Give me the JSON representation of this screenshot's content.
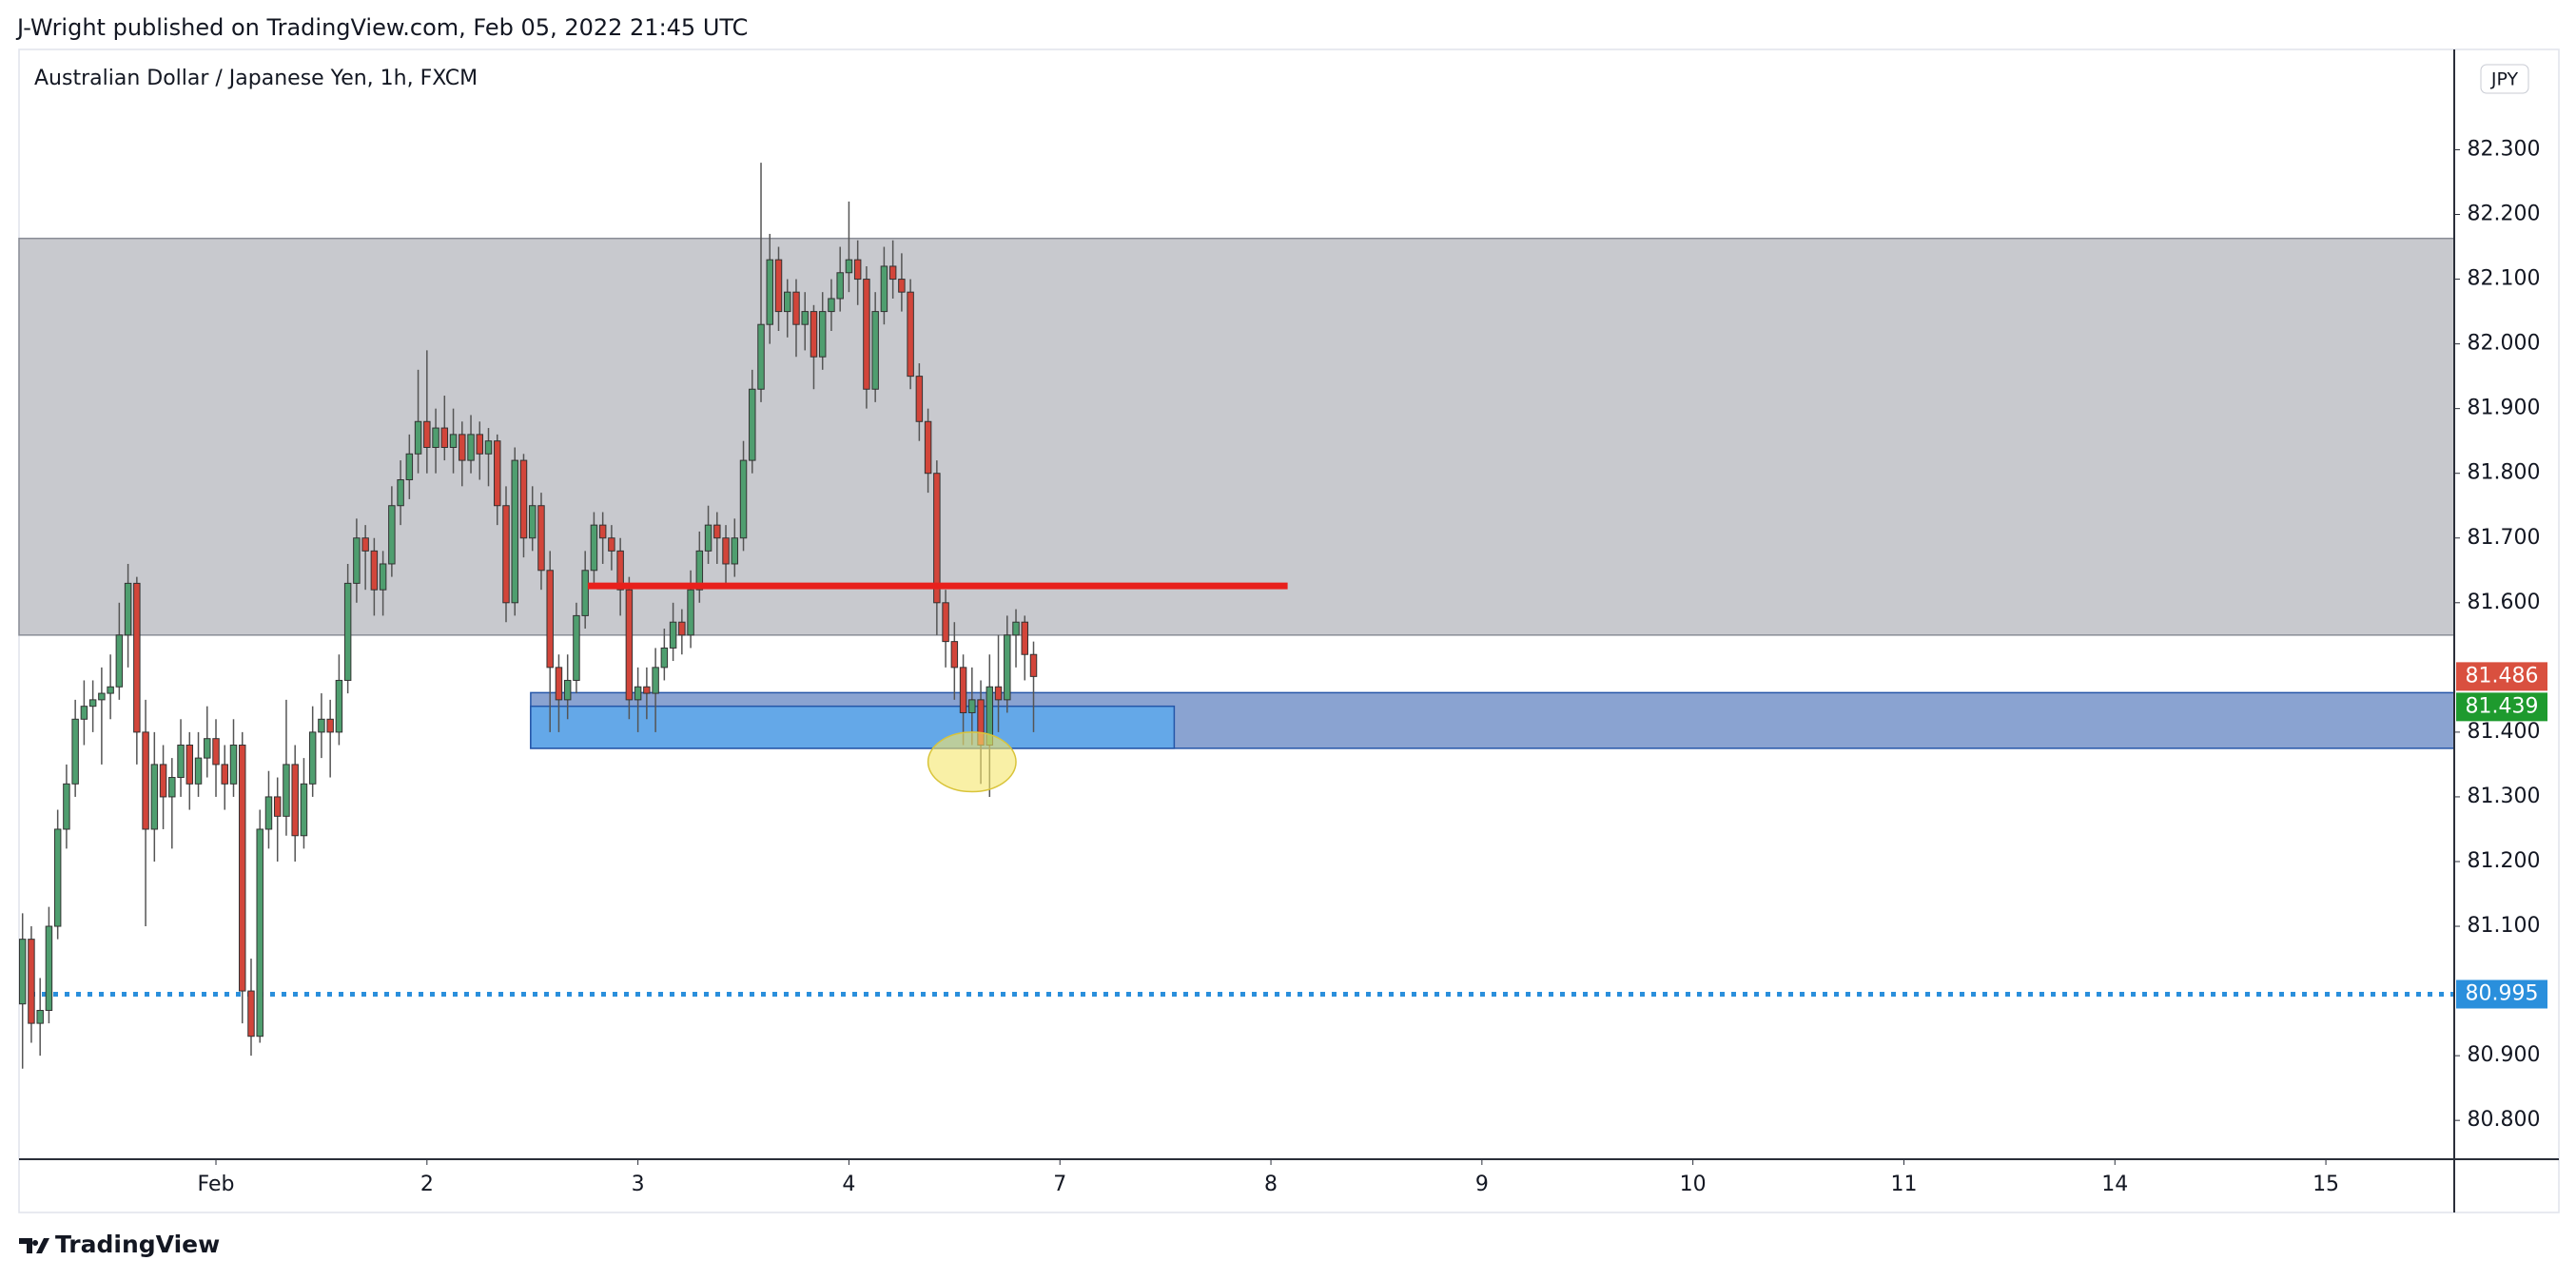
{
  "header": "J-Wright published on TradingView.com, Feb 05, 2022 21:45 UTC",
  "footer": "TradingView",
  "chart_data": {
    "type": "candlestick",
    "title": "Australian Dollar / Japanese Yen, 1h, FXCM",
    "currency": "JPY",
    "up_color": "#4f9e6f",
    "down_color": "#d2453a",
    "grid": false,
    "xlim": [
      -0.4,
      276.6
    ],
    "ylim": [
      80.74,
      82.455
    ],
    "xticks": [
      {
        "value": 22,
        "label": "Feb"
      },
      {
        "value": 46,
        "label": "2"
      },
      {
        "value": 70,
        "label": "3"
      },
      {
        "value": 94,
        "label": "4"
      },
      {
        "value": 118,
        "label": "7"
      },
      {
        "value": 142,
        "label": "8"
      },
      {
        "value": 166,
        "label": "9"
      },
      {
        "value": 190,
        "label": "10"
      },
      {
        "value": 214,
        "label": "11"
      },
      {
        "value": 238,
        "label": "14"
      },
      {
        "value": 262,
        "label": "15"
      }
    ],
    "yticks": [
      {
        "value": 80.8,
        "label": "80.800"
      },
      {
        "value": 80.9,
        "label": "80.900"
      },
      {
        "value": 81.1,
        "label": "81.100"
      },
      {
        "value": 81.2,
        "label": "81.200"
      },
      {
        "value": 81.3,
        "label": "81.300"
      },
      {
        "value": 81.4,
        "label": "81.400"
      },
      {
        "value": 81.6,
        "label": "81.600"
      },
      {
        "value": 81.7,
        "label": "81.700"
      },
      {
        "value": 81.8,
        "label": "81.800"
      },
      {
        "value": 81.9,
        "label": "81.900"
      },
      {
        "value": 82.0,
        "label": "82.000"
      },
      {
        "value": 82.1,
        "label": "82.100"
      },
      {
        "value": 82.2,
        "label": "82.200"
      },
      {
        "value": 82.3,
        "label": "82.300"
      }
    ],
    "x": [
      0,
      1,
      2,
      3,
      4,
      5,
      6,
      7,
      8,
      9,
      10,
      11,
      12,
      13,
      14,
      15,
      16,
      17,
      18,
      19,
      20,
      21,
      22,
      23,
      24,
      25,
      26,
      27,
      28,
      29,
      30,
      31,
      32,
      33,
      34,
      35,
      36,
      37,
      38,
      39,
      40,
      41,
      42,
      43,
      44,
      45,
      46,
      47,
      48,
      49,
      50,
      51,
      52,
      53,
      54,
      55,
      56,
      57,
      58,
      59,
      60,
      61,
      62,
      63,
      64,
      65,
      66,
      67,
      68,
      69,
      70,
      71,
      72,
      73,
      74,
      75,
      76,
      77,
      78,
      79,
      80,
      81,
      82,
      83,
      84,
      85,
      86,
      87,
      88,
      89,
      90,
      91,
      92,
      93,
      94,
      95,
      96,
      97,
      98,
      99,
      100,
      101,
      102,
      103,
      104,
      105,
      106,
      107,
      108,
      109,
      110,
      111,
      112,
      113,
      114,
      115
    ],
    "candles": [
      [
        80.98,
        81.12,
        80.88,
        81.08
      ],
      [
        81.08,
        81.1,
        80.92,
        80.95
      ],
      [
        80.95,
        81.02,
        80.9,
        80.97
      ],
      [
        80.97,
        81.13,
        80.95,
        81.1
      ],
      [
        81.1,
        81.28,
        81.08,
        81.25
      ],
      [
        81.25,
        81.35,
        81.22,
        81.32
      ],
      [
        81.32,
        81.45,
        81.3,
        81.42
      ],
      [
        81.42,
        81.48,
        81.38,
        81.44
      ],
      [
        81.44,
        81.48,
        81.4,
        81.45
      ],
      [
        81.45,
        81.5,
        81.35,
        81.46
      ],
      [
        81.46,
        81.52,
        81.42,
        81.47
      ],
      [
        81.47,
        81.6,
        81.45,
        81.55
      ],
      [
        81.55,
        81.66,
        81.5,
        81.63
      ],
      [
        81.63,
        81.64,
        81.35,
        81.4
      ],
      [
        81.4,
        81.45,
        81.1,
        81.25
      ],
      [
        81.25,
        81.4,
        81.2,
        81.35
      ],
      [
        81.35,
        81.38,
        81.25,
        81.3
      ],
      [
        81.3,
        81.36,
        81.22,
        81.33
      ],
      [
        81.33,
        81.42,
        81.3,
        81.38
      ],
      [
        81.38,
        81.4,
        81.28,
        81.32
      ],
      [
        81.32,
        81.4,
        81.3,
        81.36
      ],
      [
        81.36,
        81.44,
        81.33,
        81.39
      ],
      [
        81.39,
        81.42,
        81.3,
        81.35
      ],
      [
        81.35,
        81.38,
        81.28,
        81.32
      ],
      [
        81.32,
        81.42,
        81.3,
        81.38
      ],
      [
        81.38,
        81.4,
        80.95,
        81.0
      ],
      [
        81.0,
        81.05,
        80.9,
        80.93
      ],
      [
        80.93,
        81.28,
        80.92,
        81.25
      ],
      [
        81.25,
        81.34,
        81.22,
        81.3
      ],
      [
        81.3,
        81.33,
        81.2,
        81.27
      ],
      [
        81.27,
        81.45,
        81.24,
        81.35
      ],
      [
        81.35,
        81.38,
        81.2,
        81.24
      ],
      [
        81.24,
        81.36,
        81.22,
        81.32
      ],
      [
        81.32,
        81.44,
        81.3,
        81.4
      ],
      [
        81.4,
        81.46,
        81.36,
        81.42
      ],
      [
        81.42,
        81.45,
        81.33,
        81.4
      ],
      [
        81.4,
        81.52,
        81.38,
        81.48
      ],
      [
        81.48,
        81.66,
        81.46,
        81.63
      ],
      [
        81.63,
        81.73,
        81.6,
        81.7
      ],
      [
        81.7,
        81.72,
        81.62,
        81.68
      ],
      [
        81.68,
        81.7,
        81.58,
        81.62
      ],
      [
        81.62,
        81.68,
        81.58,
        81.66
      ],
      [
        81.66,
        81.78,
        81.64,
        81.75
      ],
      [
        81.75,
        81.82,
        81.72,
        81.79
      ],
      [
        81.79,
        81.86,
        81.76,
        81.83
      ],
      [
        81.83,
        81.96,
        81.8,
        81.88
      ],
      [
        81.88,
        81.99,
        81.8,
        81.84
      ],
      [
        81.84,
        81.9,
        81.8,
        81.87
      ],
      [
        81.87,
        81.92,
        81.82,
        81.84
      ],
      [
        81.84,
        81.9,
        81.8,
        81.86
      ],
      [
        81.86,
        81.88,
        81.78,
        81.82
      ],
      [
        81.82,
        81.89,
        81.8,
        81.86
      ],
      [
        81.86,
        81.88,
        81.79,
        81.83
      ],
      [
        81.83,
        81.87,
        81.78,
        81.85
      ],
      [
        81.85,
        81.86,
        81.72,
        81.75
      ],
      [
        81.75,
        81.78,
        81.57,
        81.6
      ],
      [
        81.6,
        81.84,
        81.58,
        81.82
      ],
      [
        81.82,
        81.83,
        81.67,
        81.7
      ],
      [
        81.7,
        81.78,
        81.68,
        81.75
      ],
      [
        81.75,
        81.77,
        81.62,
        81.65
      ],
      [
        81.65,
        81.68,
        81.4,
        81.5
      ],
      [
        81.5,
        81.52,
        81.4,
        81.45
      ],
      [
        81.45,
        81.52,
        81.42,
        81.48
      ],
      [
        81.48,
        81.6,
        81.46,
        81.58
      ],
      [
        81.58,
        81.68,
        81.56,
        81.65
      ],
      [
        81.65,
        81.74,
        81.63,
        81.72
      ],
      [
        81.72,
        81.74,
        81.66,
        81.7
      ],
      [
        81.7,
        81.72,
        81.65,
        81.68
      ],
      [
        81.68,
        81.7,
        81.58,
        81.62
      ],
      [
        81.62,
        81.64,
        81.42,
        81.45
      ],
      [
        81.45,
        81.5,
        81.4,
        81.47
      ],
      [
        81.47,
        81.5,
        81.42,
        81.46
      ],
      [
        81.46,
        81.53,
        81.4,
        81.5
      ],
      [
        81.5,
        81.56,
        81.48,
        81.53
      ],
      [
        81.53,
        81.6,
        81.51,
        81.57
      ],
      [
        81.57,
        81.59,
        81.52,
        81.55
      ],
      [
        81.55,
        81.65,
        81.53,
        81.62
      ],
      [
        81.62,
        81.71,
        81.6,
        81.68
      ],
      [
        81.68,
        81.75,
        81.66,
        81.72
      ],
      [
        81.72,
        81.74,
        81.66,
        81.7
      ],
      [
        81.7,
        81.72,
        81.63,
        81.66
      ],
      [
        81.66,
        81.73,
        81.64,
        81.7
      ],
      [
        81.7,
        81.85,
        81.68,
        81.82
      ],
      [
        81.82,
        81.96,
        81.8,
        81.93
      ],
      [
        81.93,
        82.28,
        81.91,
        82.03
      ],
      [
        82.03,
        82.17,
        82.0,
        82.13
      ],
      [
        82.13,
        82.15,
        82.02,
        82.05
      ],
      [
        82.05,
        82.1,
        82.01,
        82.08
      ],
      [
        82.08,
        82.1,
        81.98,
        82.03
      ],
      [
        82.03,
        82.08,
        81.99,
        82.05
      ],
      [
        82.05,
        82.06,
        81.93,
        81.98
      ],
      [
        81.98,
        82.08,
        81.96,
        82.05
      ],
      [
        82.05,
        82.1,
        82.02,
        82.07
      ],
      [
        82.07,
        82.15,
        82.05,
        82.11
      ],
      [
        82.11,
        82.22,
        82.08,
        82.13
      ],
      [
        82.13,
        82.16,
        82.06,
        82.1
      ],
      [
        82.1,
        82.12,
        81.9,
        81.93
      ],
      [
        81.93,
        82.08,
        81.91,
        82.05
      ],
      [
        82.05,
        82.15,
        82.03,
        82.12
      ],
      [
        82.12,
        82.16,
        82.07,
        82.1
      ],
      [
        82.1,
        82.14,
        82.05,
        82.08
      ],
      [
        82.08,
        82.1,
        81.93,
        81.95
      ],
      [
        81.95,
        81.97,
        81.85,
        81.88
      ],
      [
        81.88,
        81.9,
        81.77,
        81.8
      ],
      [
        81.8,
        81.82,
        81.55,
        81.6
      ],
      [
        81.6,
        81.62,
        81.5,
        81.54
      ],
      [
        81.54,
        81.57,
        81.45,
        81.5
      ],
      [
        81.5,
        81.52,
        81.38,
        81.43
      ],
      [
        81.43,
        81.5,
        81.38,
        81.45
      ],
      [
        81.45,
        81.48,
        81.32,
        81.38
      ],
      [
        81.38,
        81.52,
        81.3,
        81.47
      ],
      [
        81.47,
        81.55,
        81.4,
        81.45
      ],
      [
        81.45,
        81.58,
        81.43,
        81.55
      ],
      [
        81.55,
        81.59,
        81.5,
        81.57
      ],
      [
        81.57,
        81.58,
        81.48,
        81.52
      ],
      [
        81.52,
        81.54,
        81.4,
        81.486
      ]
    ],
    "zones": [
      {
        "ylim": [
          81.55,
          82.163
        ],
        "color": "#c8c9ce"
      },
      {
        "xlim": [
          57.8,
          276.6
        ],
        "ylim": [
          81.375,
          81.461
        ],
        "color": "#8aa3d1"
      },
      {
        "xlim": [
          57.8,
          131
        ],
        "ylim": [
          81.375,
          81.44
        ],
        "color": "#64a8e8"
      }
    ],
    "segments": [
      {
        "x": [
          64.3,
          143.9
        ],
        "y": 81.626,
        "color": "#e8201c"
      }
    ],
    "hlines": [
      {
        "y": 80.995,
        "color": "#2a8fdc"
      }
    ],
    "ellipses": [
      {
        "cx": 108,
        "cy": 81.354,
        "rx": 5,
        "ry": 0.046,
        "color": "#f5e66a"
      }
    ],
    "price_markers": [
      {
        "value": 81.486,
        "color": "#d9503f"
      },
      {
        "value": 81.439,
        "color": "#1e9a2e"
      },
      {
        "value": 80.995,
        "color": "#2a8fdc"
      }
    ]
  }
}
